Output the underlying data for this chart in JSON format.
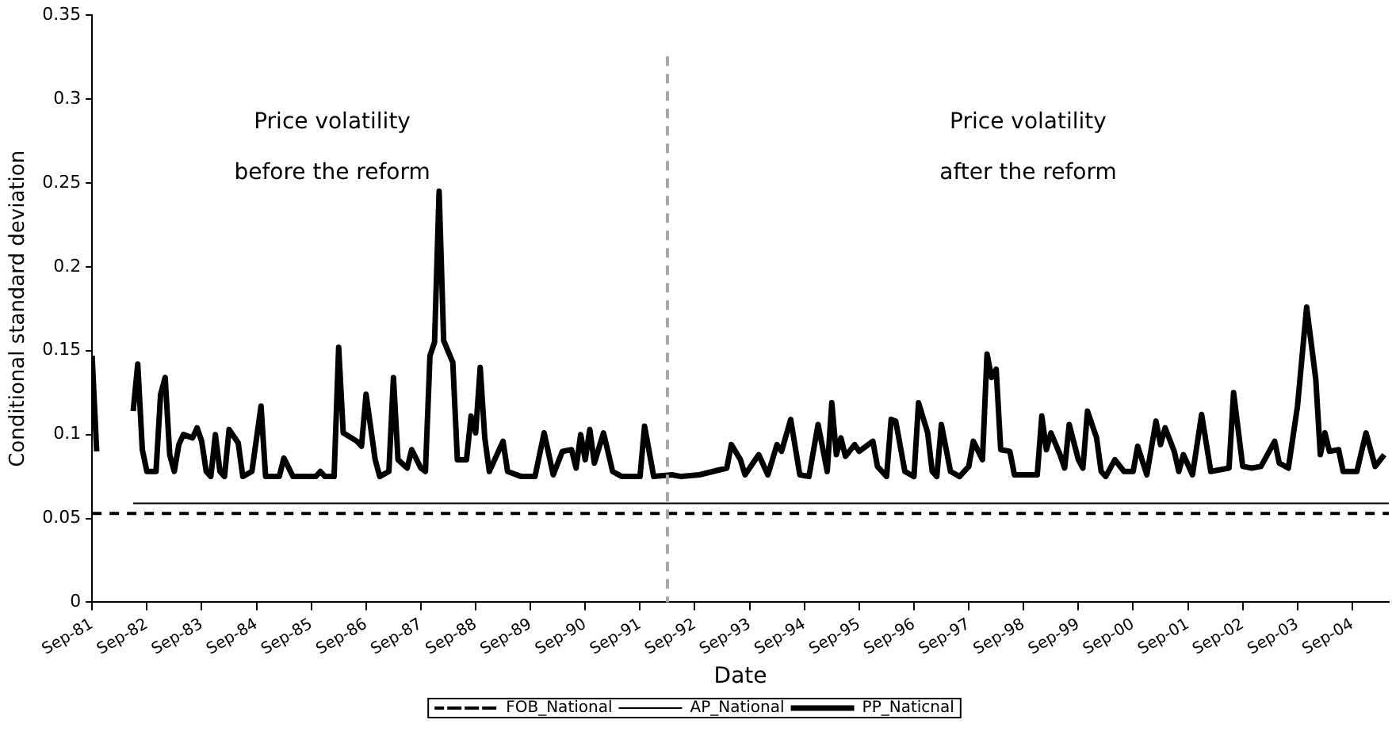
{
  "chart_data": {
    "type": "line",
    "xlabel": "Date",
    "ylabel": "Conditional standard deviation",
    "xlim": [
      "1981-09",
      "2005-05"
    ],
    "ylim": [
      0,
      0.35
    ],
    "xticks": [
      {
        "value": "1981-09",
        "label": "Sep-81"
      },
      {
        "value": "1982-09",
        "label": "Sep-82"
      },
      {
        "value": "1983-09",
        "label": "Sep-83"
      },
      {
        "value": "1984-09",
        "label": "Sep-84"
      },
      {
        "value": "1985-09",
        "label": "Sep-85"
      },
      {
        "value": "1986-09",
        "label": "Sep-86"
      },
      {
        "value": "1987-09",
        "label": "Sep-87"
      },
      {
        "value": "1988-09",
        "label": "Sep-88"
      },
      {
        "value": "1989-09",
        "label": "Sep-89"
      },
      {
        "value": "1990-09",
        "label": "Sep-90"
      },
      {
        "value": "1991-09",
        "label": "Sep-91"
      },
      {
        "value": "1992-09",
        "label": "Sep-92"
      },
      {
        "value": "1993-09",
        "label": "Sep-93"
      },
      {
        "value": "1994-09",
        "label": "Sep-94"
      },
      {
        "value": "1995-09",
        "label": "Sep-95"
      },
      {
        "value": "1996-09",
        "label": "Sep-96"
      },
      {
        "value": "1997-09",
        "label": "Sep-97"
      },
      {
        "value": "1998-09",
        "label": "Sep-98"
      },
      {
        "value": "1999-09",
        "label": "Sep-99"
      },
      {
        "value": "2000-09",
        "label": "Sep-00"
      },
      {
        "value": "2001-09",
        "label": "Sep-01"
      },
      {
        "value": "2002-09",
        "label": "Sep-02"
      },
      {
        "value": "2003-09",
        "label": "Sep-03"
      },
      {
        "value": "2004-09",
        "label": "Sep-04"
      }
    ],
    "yticks": [
      0,
      0.05,
      0.1,
      0.15,
      0.2,
      0.25,
      0.3,
      0.35
    ],
    "grid": false,
    "legend": "bottom",
    "marker": "none",
    "ref_lines": [
      {
        "axis": "x",
        "value": "1992-03",
        "color": "#a6a6a6",
        "line_style": "dashed"
      }
    ],
    "annotations": [
      "Price volatility\nbefore the reform",
      "Price volatility\nafter the reform"
    ],
    "series": [
      {
        "name": "FOB_National",
        "color": "#000000",
        "line_style": "dashed",
        "x": [
          "1981-09",
          "2005-05"
        ],
        "values": [
          0.053,
          0.053
        ]
      },
      {
        "name": "AP_National",
        "color": "#000000",
        "line_style": "solid",
        "x": [
          "1982-06",
          "2005-05"
        ],
        "values": [
          0.059,
          0.059
        ]
      },
      {
        "name": "PP_Naticnal",
        "color": "#000000",
        "line_style": "solid",
        "x": [
          "1981-09",
          "1981-10",
          "1982-01",
          "1982-06",
          "1982-07",
          "1982-08",
          "1982-09",
          "1982-11",
          "1982-12",
          "1983-01",
          "1983-02",
          "1983-03",
          "1983-04",
          "1983-05",
          "1983-07",
          "1983-08",
          "1983-09",
          "1983-10",
          "1983-11",
          "1983-12",
          "1984-01",
          "1984-02",
          "1984-03",
          "1984-05",
          "1984-06",
          "1984-08",
          "1984-10",
          "1984-11",
          "1985-02",
          "1985-03",
          "1985-05",
          "1985-10",
          "1985-11",
          "1985-12",
          "1986-02",
          "1986-03",
          "1986-04",
          "1986-07",
          "1986-08",
          "1986-09",
          "1986-11",
          "1986-12",
          "1987-02",
          "1987-03",
          "1987-04",
          "1987-06",
          "1987-07",
          "1987-09",
          "1987-10",
          "1987-11",
          "1987-12",
          "1988-01",
          "1988-02",
          "1988-04",
          "1988-05",
          "1988-07",
          "1988-08",
          "1988-09",
          "1988-10",
          "1988-11",
          "1988-12",
          "1989-03",
          "1989-04",
          "1989-07",
          "1989-10",
          "1989-12",
          "1990-02",
          "1990-04",
          "1990-06",
          "1990-07",
          "1990-08",
          "1990-09",
          "1990-10",
          "1990-11",
          "1991-01",
          "1991-03",
          "1991-05",
          "1991-09",
          "1991-10",
          "1991-12",
          "1992-04",
          "1992-06",
          "1992-10",
          "1993-04",
          "1993-05",
          "1993-07",
          "1993-08",
          "1993-11",
          "1994-01",
          "1994-03",
          "1994-04",
          "1994-06",
          "1994-08",
          "1994-10",
          "1994-12",
          "1995-02",
          "1995-03",
          "1995-04",
          "1995-05",
          "1995-06",
          "1995-08",
          "1995-09",
          "1995-11",
          "1995-12",
          "1996-01",
          "1996-03",
          "1996-04",
          "1996-05",
          "1996-07",
          "1996-09",
          "1996-10",
          "1996-12",
          "1997-01",
          "1997-02",
          "1997-03",
          "1997-05",
          "1997-07",
          "1997-09",
          "1997-10",
          "1997-12",
          "1998-01",
          "1998-02",
          "1998-03",
          "1998-04",
          "1998-06",
          "1998-07",
          "1998-09",
          "1998-12",
          "1999-01",
          "1999-02",
          "1999-03",
          "1999-05",
          "1999-06",
          "1999-07",
          "1999-09",
          "1999-10",
          "1999-11",
          "2000-01",
          "2000-02",
          "2000-03",
          "2000-05",
          "2000-07",
          "2000-09",
          "2000-10",
          "2000-12",
          "2001-02",
          "2001-03",
          "2001-04",
          "2001-06",
          "2001-07",
          "2001-08",
          "2001-10",
          "2001-12",
          "2002-02",
          "2002-06",
          "2002-07",
          "2002-09",
          "2002-11",
          "2003-01",
          "2003-04",
          "2003-05",
          "2003-07",
          "2003-09",
          "2003-11",
          "2004-01",
          "2004-02",
          "2004-03",
          "2004-04",
          "2004-06",
          "2004-07",
          "2004-10",
          "2004-12",
          "2005-02",
          "2005-04"
        ],
        "values": [
          0.147,
          0.09,
          null,
          0.114,
          0.142,
          0.091,
          0.078,
          0.078,
          0.124,
          0.134,
          0.088,
          0.078,
          0.094,
          0.1,
          0.098,
          0.104,
          0.096,
          0.078,
          0.075,
          0.1,
          0.078,
          0.075,
          0.103,
          0.095,
          0.075,
          0.078,
          0.117,
          0.075,
          0.075,
          0.086,
          0.075,
          0.075,
          0.078,
          0.075,
          0.075,
          0.152,
          0.101,
          0.096,
          0.093,
          0.124,
          0.085,
          0.075,
          0.078,
          0.134,
          0.085,
          0.08,
          0.091,
          0.08,
          0.078,
          0.147,
          0.155,
          0.245,
          0.156,
          0.143,
          0.085,
          0.085,
          0.111,
          0.101,
          0.14,
          0.098,
          0.078,
          0.096,
          0.078,
          0.075,
          0.075,
          0.101,
          0.076,
          0.09,
          0.091,
          0.08,
          0.1,
          0.085,
          0.103,
          0.083,
          0.101,
          0.078,
          0.075,
          0.075,
          0.105,
          0.075,
          0.076,
          0.075,
          0.076,
          0.08,
          0.094,
          0.085,
          0.076,
          0.088,
          0.076,
          0.094,
          0.09,
          0.109,
          0.076,
          0.075,
          0.106,
          0.078,
          0.119,
          0.088,
          0.098,
          0.087,
          0.094,
          0.09,
          0.094,
          0.096,
          0.081,
          0.075,
          0.109,
          0.108,
          0.078,
          0.075,
          0.119,
          0.101,
          0.078,
          0.075,
          0.106,
          0.078,
          0.075,
          0.081,
          0.096,
          0.085,
          0.148,
          0.134,
          0.139,
          0.091,
          0.09,
          0.076,
          0.076,
          0.076,
          0.111,
          0.091,
          0.101,
          0.088,
          0.08,
          0.106,
          0.085,
          0.08,
          0.114,
          0.098,
          0.078,
          0.075,
          0.085,
          0.078,
          0.078,
          0.093,
          0.076,
          0.108,
          0.094,
          0.104,
          0.09,
          0.078,
          0.088,
          0.076,
          0.112,
          0.078,
          0.08,
          0.125,
          0.081,
          0.08,
          0.081,
          0.096,
          0.083,
          0.08,
          0.117,
          0.176,
          0.133,
          0.088,
          0.101,
          0.09,
          0.091,
          0.078,
          0.078,
          0.101,
          0.081,
          0.088
        ]
      }
    ]
  }
}
